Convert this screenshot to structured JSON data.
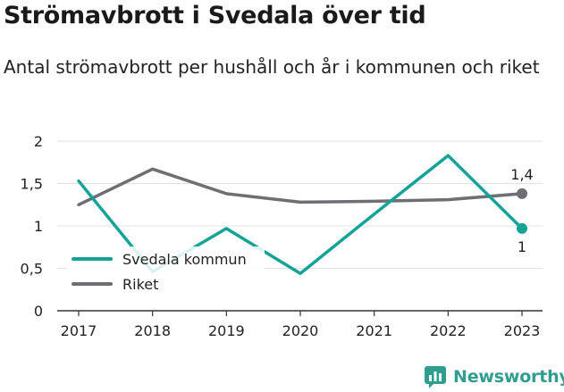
{
  "header": {
    "title": "Strömavbrott i Svedala över tid",
    "subtitle": "Antal strömavbrott per hushåll och år i kommunen och riket"
  },
  "brand": {
    "name": "Newsworthy",
    "icon": "newsworthy-logo-icon",
    "color": "#2f9e8f"
  },
  "colors": {
    "svedala": "#14a396",
    "riket": "#6e6e73",
    "grid": "#e2e2e2",
    "axis": "#333333"
  },
  "chart_data": {
    "type": "line",
    "title": "Strömavbrott i Svedala över tid",
    "subtitle": "Antal strömavbrott per hushåll och år i kommunen och riket",
    "x": [
      "2017",
      "2018",
      "2019",
      "2020",
      "2021",
      "2022",
      "2023"
    ],
    "ylim": [
      0,
      2
    ],
    "yticks": [
      0,
      0.5,
      1,
      1.5,
      2
    ],
    "ytick_labels": [
      "0",
      "0,5",
      "1",
      "1,5",
      "2"
    ],
    "grid": "horizontal",
    "legend": "bottom-left",
    "series": [
      {
        "name": "Svedala kommun",
        "color": "#14a396",
        "values": [
          1.53,
          0.46,
          0.97,
          0.44,
          1.14,
          1.83,
          0.97
        ],
        "end_label": "1"
      },
      {
        "name": "Riket",
        "color": "#6e6e73",
        "values": [
          1.25,
          1.67,
          1.38,
          1.28,
          1.29,
          1.31,
          1.38
        ],
        "end_label": "1,4"
      }
    ]
  }
}
